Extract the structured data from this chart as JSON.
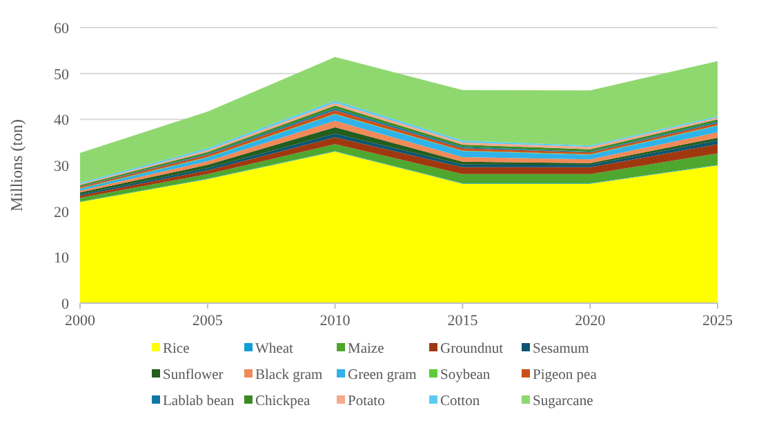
{
  "chart_data": {
    "type": "area",
    "stacked": true,
    "ylabel": "Millions (ton)",
    "x": [
      2000,
      2005,
      2010,
      2015,
      2020,
      2025
    ],
    "xlim": [
      2000,
      2025
    ],
    "xticks": [
      2000,
      2005,
      2010,
      2015,
      2020,
      2025
    ],
    "ylim": [
      0,
      60
    ],
    "yticks": [
      0,
      10,
      20,
      30,
      40,
      50,
      60
    ],
    "grid": "y",
    "legend": "bottom",
    "series": [
      {
        "name": "Rice",
        "color": "#ffff00",
        "values": [
          22,
          27,
          33,
          26,
          26,
          30
        ]
      },
      {
        "name": "Wheat",
        "color": "#0f9ed5",
        "values": [
          0.1,
          0.1,
          0.1,
          0.1,
          0.1,
          0.1
        ]
      },
      {
        "name": "Maize",
        "color": "#4ea72e",
        "values": [
          0.8,
          1,
          1.5,
          2,
          2,
          2.5
        ]
      },
      {
        "name": "Groundnut",
        "color": "#a0380f",
        "values": [
          0.5,
          0.8,
          1.5,
          1.5,
          1.5,
          2
        ]
      },
      {
        "name": "Sesamum",
        "color": "#0b5570",
        "values": [
          0.3,
          0.5,
          0.8,
          0.6,
          0.5,
          0.8
        ]
      },
      {
        "name": "Sunflower",
        "color": "#235d1e",
        "values": [
          0.4,
          0.7,
          1.4,
          0.6,
          0.4,
          0.6
        ]
      },
      {
        "name": "Black gram",
        "color": "#f08a58",
        "values": [
          0.4,
          0.8,
          1.4,
          1,
          0.8,
          1.2
        ]
      },
      {
        "name": "Green gram",
        "color": "#2fb3ea",
        "values": [
          0.4,
          0.8,
          1.4,
          1.3,
          1,
          1.4
        ]
      },
      {
        "name": "Soybean",
        "color": "#5ecb3a",
        "values": [
          0.1,
          0.1,
          0.1,
          0.1,
          0.1,
          0.1
        ]
      },
      {
        "name": "Pigeon pea",
        "color": "#c9501c",
        "values": [
          0.3,
          0.5,
          0.8,
          0.5,
          0.4,
          0.5
        ]
      },
      {
        "name": "Lablab bean",
        "color": "#1277a6",
        "values": [
          0.1,
          0.2,
          0.4,
          0.3,
          0.2,
          0.3
        ]
      },
      {
        "name": "Chickpea",
        "color": "#3a8a24",
        "values": [
          0.3,
          0.4,
          0.6,
          0.5,
          0.5,
          0.5
        ]
      },
      {
        "name": "Potato",
        "color": "#f4a98a",
        "values": [
          0.2,
          0.4,
          0.6,
          0.5,
          0.5,
          0.4
        ]
      },
      {
        "name": "Cotton",
        "color": "#5ccbf3",
        "values": [
          0.3,
          0.4,
          0.5,
          0.4,
          0.3,
          0.3
        ]
      },
      {
        "name": "Sugarcane",
        "color": "#8fd870",
        "values": [
          6.5,
          8,
          9.5,
          11,
          12,
          12
        ]
      }
    ]
  }
}
